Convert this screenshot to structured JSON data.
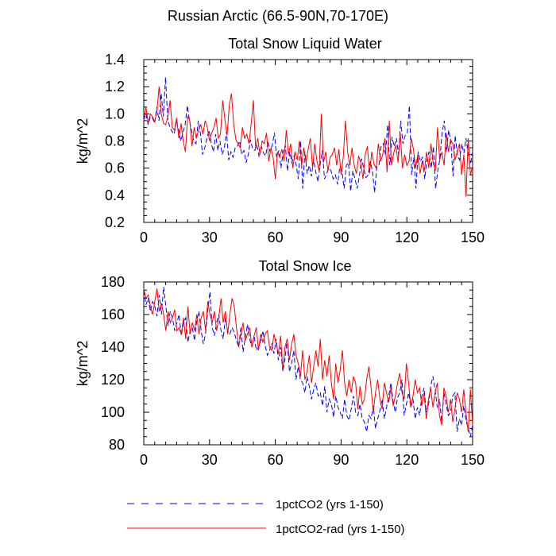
{
  "figure_title": "Russian Arctic (66.5-90N,70-170E)",
  "legend": [
    {
      "label": "1pctCO2 (yrs 1-150)",
      "color": "#0000ff",
      "dash": "dashed"
    },
    {
      "label": "1pctCO2-rad (yrs 1-150)",
      "color": "#ff0000",
      "dash": "solid"
    }
  ],
  "chart_data": [
    {
      "type": "line",
      "title": "Total Snow Liquid Water",
      "xlabel": "",
      "ylabel": "kg/m^2",
      "xlim": [
        0,
        150
      ],
      "ylim": [
        0.2,
        1.4
      ],
      "xticks": [
        0,
        30,
        60,
        90,
        120,
        150
      ],
      "yticks": [
        0.2,
        0.4,
        0.6,
        0.8,
        1.0,
        1.2,
        1.4
      ],
      "ytick_labels": [
        "0.2",
        "0.4",
        "0.6",
        "0.8",
        "1.0",
        "1.2",
        "1.4"
      ],
      "grid": false,
      "series": [
        {
          "name": "1pctCO2 (yrs 1-150)",
          "color": "#0000ff",
          "dash": "dashed",
          "values": [
            0.95,
            1.0,
            0.92,
            0.98,
            0.97,
            0.93,
            1.05,
            0.95,
            1.15,
            0.98,
            1.27,
            0.96,
            0.9,
            0.87,
            0.85,
            0.95,
            0.88,
            0.8,
            0.86,
            0.92,
            1.06,
            0.95,
            0.87,
            0.8,
            0.78,
            0.95,
            0.86,
            0.7,
            0.75,
            0.82,
            0.88,
            0.78,
            0.72,
            0.85,
            0.73,
            0.8,
            0.7,
            0.75,
            0.87,
            0.66,
            0.72,
            0.68,
            0.75,
            0.76,
            0.8,
            0.7,
            0.73,
            0.64,
            0.7,
            0.81,
            0.74,
            0.73,
            0.77,
            0.68,
            0.76,
            0.71,
            0.69,
            0.8,
            0.72,
            0.77,
            0.86,
            0.68,
            0.73,
            0.6,
            0.72,
            0.77,
            0.58,
            0.72,
            0.64,
            0.69,
            0.62,
            0.52,
            0.8,
            0.45,
            0.72,
            0.56,
            0.62,
            0.54,
            0.66,
            0.57,
            0.5,
            0.63,
            0.73,
            0.52,
            0.56,
            0.6,
            0.58,
            0.52,
            0.55,
            0.48,
            0.61,
            0.58,
            0.45,
            0.62,
            0.64,
            0.43,
            0.58,
            0.52,
            0.45,
            0.54,
            0.67,
            0.6,
            0.53,
            0.55,
            0.65,
            0.58,
            0.42,
            0.61,
            0.62,
            0.76,
            0.78,
            0.7,
            0.92,
            0.62,
            0.83,
            0.76,
            0.82,
            0.7,
            0.95,
            0.78,
            0.84,
            0.86,
            1.06,
            0.55,
            0.68,
            0.45,
            0.72,
            0.65,
            0.68,
            0.52,
            0.66,
            0.72,
            0.6,
            0.76,
            0.45,
            0.58,
            0.67,
            0.86,
            0.95,
            0.72,
            0.88,
            0.8,
            0.54,
            0.84,
            0.7,
            0.66,
            0.78,
            0.71,
            0.82,
            0.7,
            0.63,
            0.72
          ]
        },
        {
          "name": "1pctCO2-rad (yrs 1-150)",
          "color": "#ff0000",
          "dash": "solid",
          "values": [
            0.95,
            1.05,
            0.93,
            1.0,
            0.98,
            0.94,
            1.02,
            1.2,
            1.0,
            0.93,
            0.92,
            0.98,
            1.1,
            0.9,
            0.88,
            0.97,
            0.82,
            0.93,
            0.8,
            0.72,
            0.98,
            0.95,
            0.76,
            0.9,
            0.82,
            0.88,
            0.92,
            0.85,
            0.95,
            0.9,
            0.8,
            0.86,
            0.9,
            0.97,
            0.82,
            0.85,
            1.1,
            0.96,
            0.84,
            1.06,
            1.15,
            0.93,
            0.81,
            0.78,
            0.75,
            0.9,
            0.82,
            0.85,
            0.78,
            0.93,
            1.1,
            0.75,
            0.82,
            0.7,
            0.8,
            0.78,
            0.86,
            0.65,
            0.75,
            0.68,
            0.52,
            0.72,
            0.68,
            0.74,
            0.65,
            0.88,
            0.7,
            0.78,
            0.6,
            0.72,
            0.66,
            0.8,
            0.62,
            0.75,
            0.64,
            0.74,
            0.82,
            0.6,
            0.78,
            0.65,
            0.58,
            1.0,
            0.64,
            0.72,
            0.58,
            0.68,
            0.7,
            0.75,
            0.62,
            0.74,
            0.55,
            0.68,
            0.95,
            0.72,
            0.62,
            0.75,
            0.62,
            0.56,
            0.69,
            0.64,
            0.52,
            0.7,
            0.76,
            0.56,
            0.72,
            0.63,
            0.6,
            0.78,
            0.65,
            0.7,
            0.82,
            0.57,
            0.95,
            0.62,
            0.71,
            0.77,
            0.64,
            0.86,
            0.6,
            0.7,
            0.62,
            0.65,
            0.82,
            0.74,
            0.6,
            0.7,
            0.56,
            0.65,
            0.58,
            0.72,
            0.6,
            0.78,
            0.64,
            0.58,
            0.9,
            0.66,
            0.72,
            0.62,
            0.86,
            0.72,
            0.81,
            0.78,
            0.66,
            0.72,
            0.78,
            0.55,
            0.7,
            0.39,
            0.82,
            0.55,
            0.62
          ]
        }
      ]
    },
    {
      "type": "line",
      "title": "Total Snow Ice",
      "xlabel": "",
      "ylabel": "kg/m^2",
      "xlim": [
        0,
        150
      ],
      "ylim": [
        80,
        180
      ],
      "xticks": [
        0,
        30,
        60,
        90,
        120,
        150
      ],
      "yticks": [
        80,
        100,
        120,
        140,
        160,
        180
      ],
      "ytick_labels": [
        "80",
        "100",
        "120",
        "140",
        "160",
        "180"
      ],
      "grid": false,
      "series": [
        {
          "name": "1pctCO2 (yrs 1-150)",
          "color": "#0000ff",
          "dash": "dashed",
          "values": [
            175,
            166,
            170,
            162,
            168,
            165,
            159,
            172,
            160,
            177,
            165,
            153,
            162,
            158,
            150,
            155,
            160,
            147,
            155,
            158,
            143,
            150,
            152,
            144,
            156,
            162,
            150,
            142,
            148,
            163,
            174,
            152,
            147,
            155,
            160,
            150,
            145,
            158,
            150,
            148,
            152,
            149,
            144,
            140,
            152,
            137,
            146,
            154,
            145,
            140,
            147,
            138,
            140,
            144,
            150,
            141,
            135,
            138,
            142,
            136,
            145,
            132,
            140,
            125,
            133,
            145,
            125,
            130,
            138,
            120,
            128,
            120,
            118,
            112,
            122,
            116,
            108,
            114,
            118,
            110,
            112,
            104,
            116,
            100,
            108,
            105,
            97,
            110,
            103,
            100,
            96,
            108,
            98,
            95,
            102,
            110,
            100,
            98,
            105,
            96,
            94,
            88,
            98,
            96,
            104,
            90,
            96,
            101,
            108,
            96,
            103,
            110,
            118,
            106,
            100,
            109,
            112,
            120,
            98,
            105,
            112,
            103,
            108,
            96,
            103,
            98,
            110,
            115,
            100,
            104,
            116,
            122,
            114,
            103,
            108,
            94,
            112,
            105,
            98,
            100,
            110,
            112,
            88,
            96,
            92,
            104,
            95,
            90,
            85,
            92
          ]
        },
        {
          "name": "1pctCO2-rad (yrs 1-150)",
          "color": "#ff0000",
          "dash": "solid",
          "values": [
            176,
            170,
            172,
            165,
            160,
            168,
            176,
            162,
            167,
            160,
            150,
            162,
            155,
            158,
            163,
            150,
            152,
            148,
            158,
            145,
            165,
            148,
            155,
            150,
            160,
            148,
            158,
            162,
            150,
            168,
            160,
            155,
            162,
            150,
            158,
            170,
            155,
            162,
            148,
            160,
            170,
            165,
            152,
            140,
            148,
            155,
            144,
            148,
            152,
            140,
            147,
            152,
            138,
            148,
            143,
            148,
            150,
            140,
            138,
            148,
            142,
            136,
            147,
            126,
            140,
            145,
            132,
            142,
            148,
            135,
            130,
            122,
            138,
            120,
            125,
            135,
            118,
            128,
            138,
            128,
            145,
            120,
            132,
            122,
            135,
            118,
            108,
            130,
            118,
            126,
            138,
            118,
            110,
            120,
            112,
            122,
            118,
            102,
            116,
            105,
            108,
            120,
            128,
            115,
            100,
            112,
            120,
            108,
            102,
            118,
            112,
            106,
            115,
            104,
            110,
            118,
            124,
            112,
            108,
            130,
            118,
            103,
            110,
            120,
            112,
            115,
            104,
            112,
            96,
            108,
            115,
            103,
            112,
            118,
            98,
            92,
            115,
            110,
            100,
            108,
            94,
            102,
            112,
            108,
            100,
            114,
            100,
            88,
            114,
            92
          ]
        }
      ]
    }
  ]
}
